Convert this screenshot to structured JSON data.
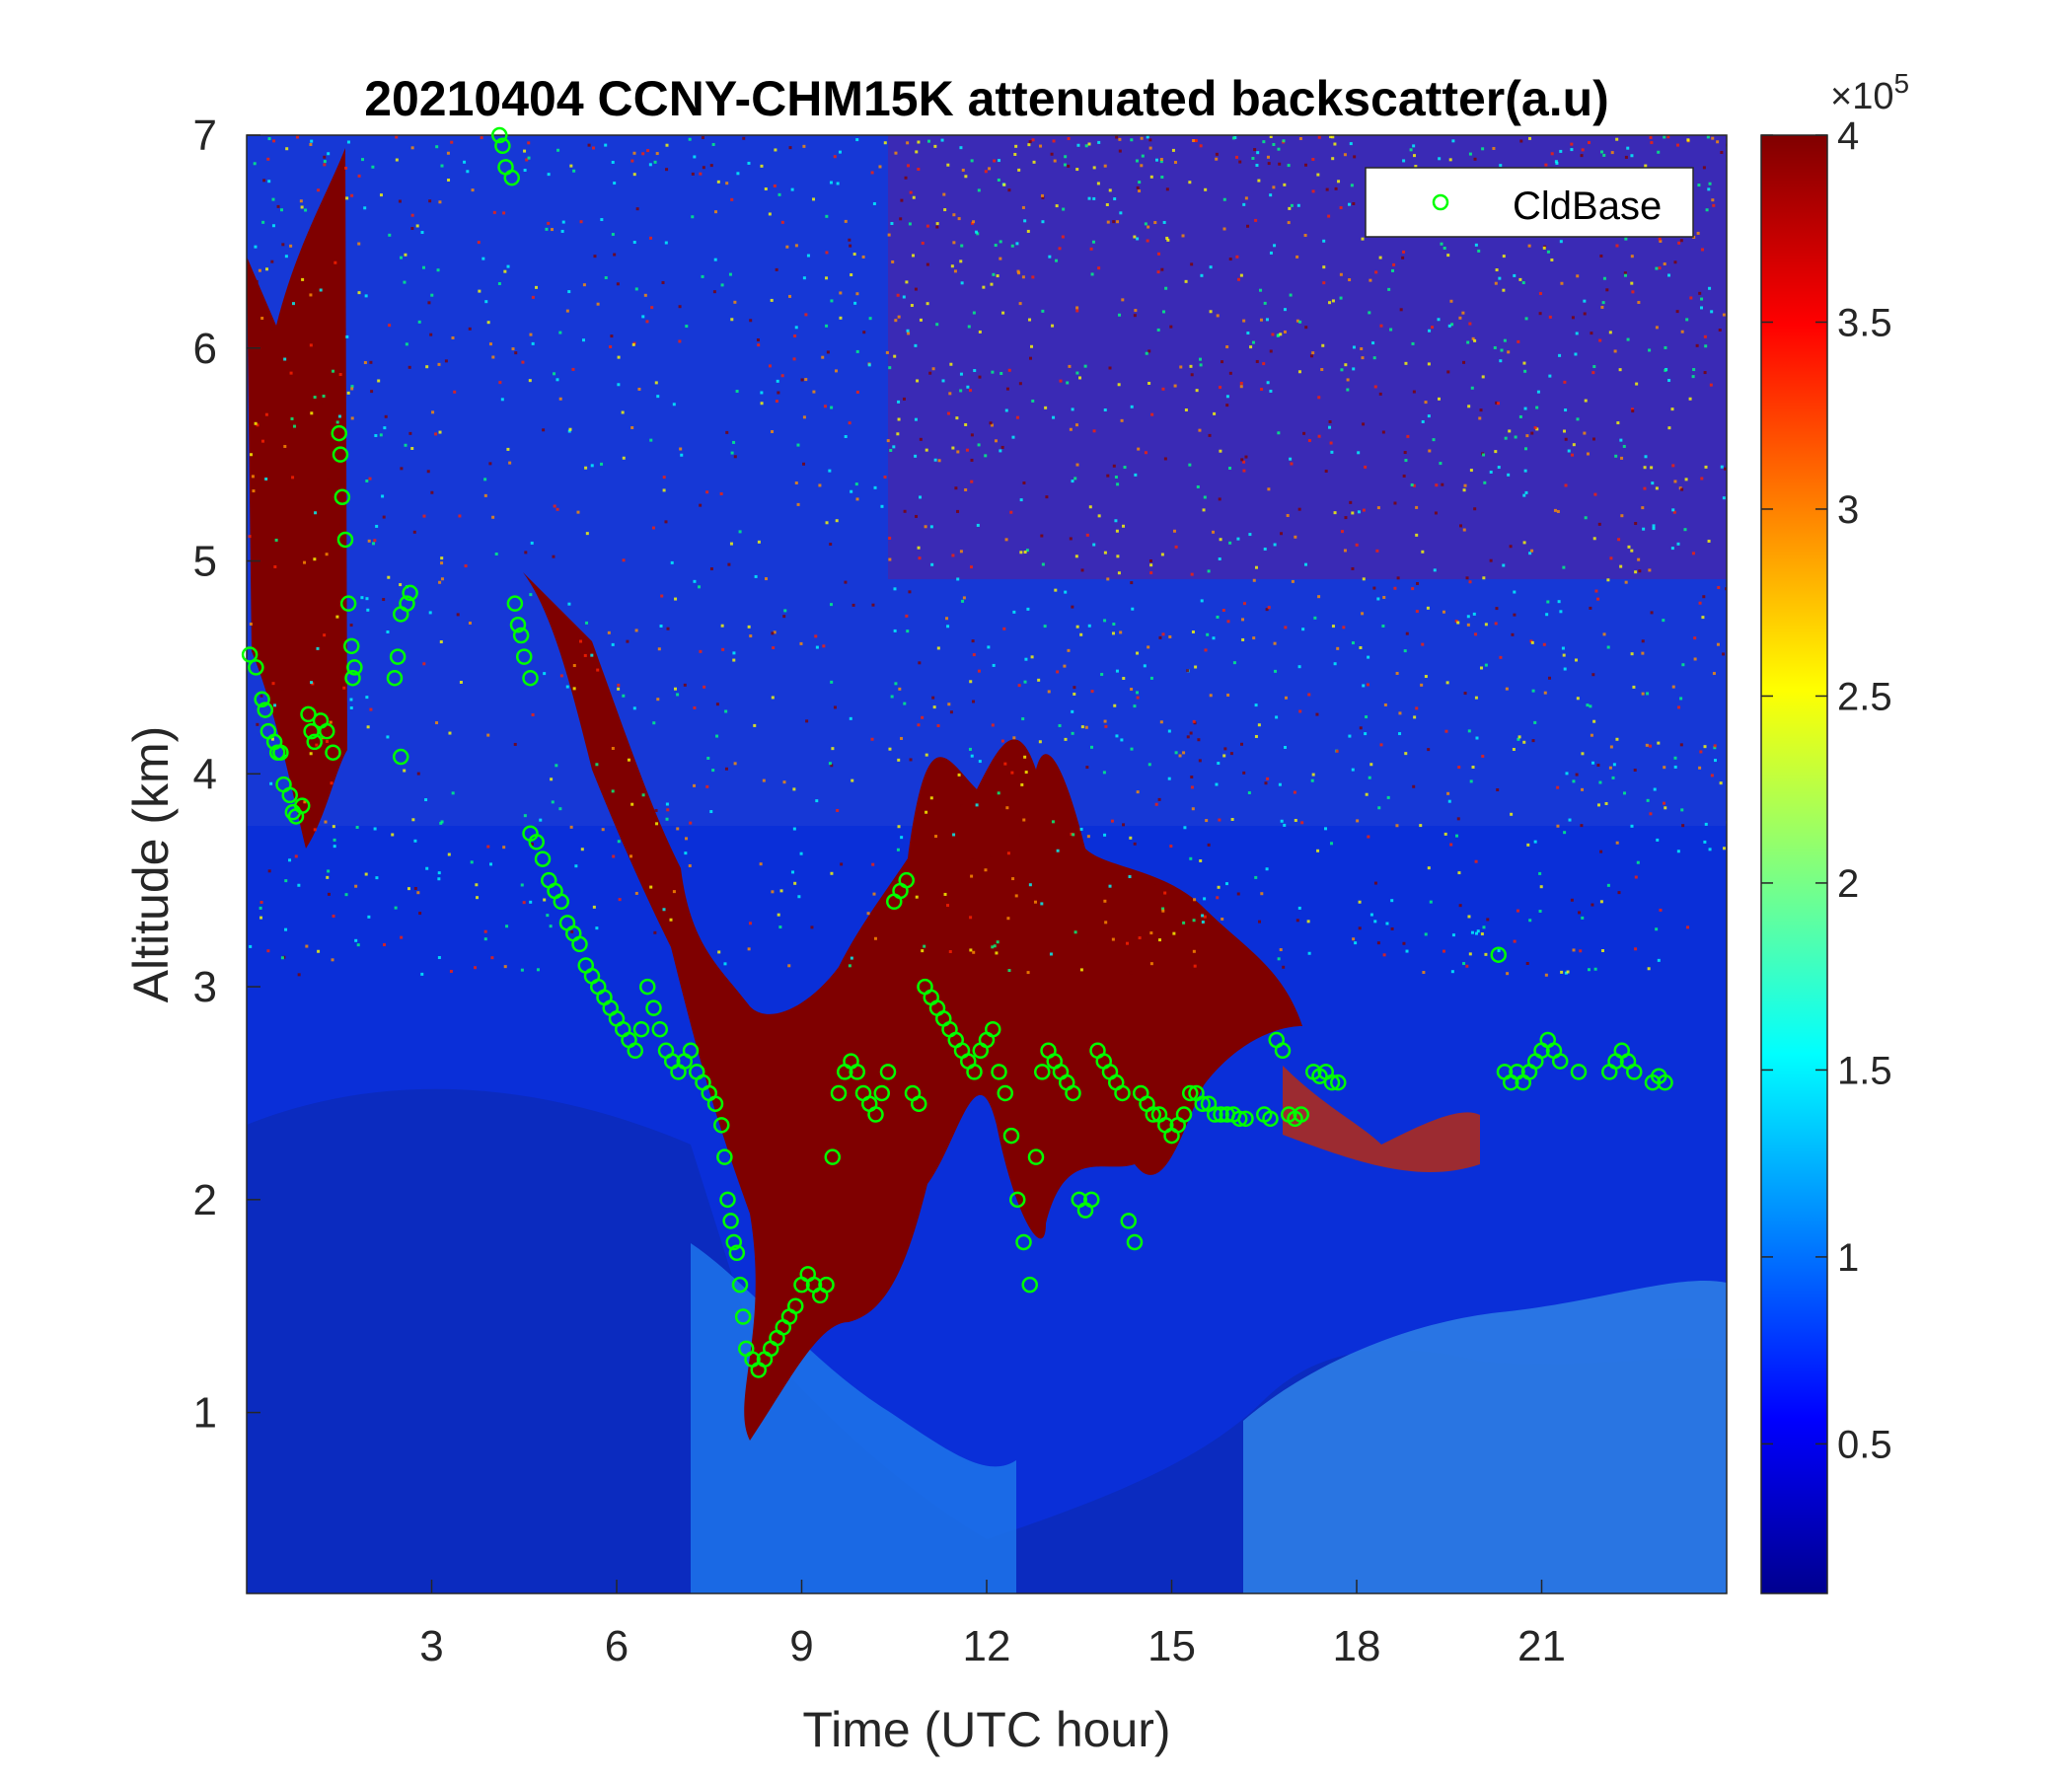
{
  "chart_data": {
    "type": "heatmap",
    "title": "20210404 CCNY-CHM15K attenuated backscatter(a.u)",
    "xlabel": "Time (UTC hour)",
    "ylabel": "Altitude (km)",
    "xlim": [
      0,
      24
    ],
    "ylim": [
      0.15,
      7
    ],
    "xticks": [
      3,
      6,
      9,
      12,
      15,
      18,
      21
    ],
    "yticks": [
      1,
      2,
      3,
      4,
      5,
      6,
      7
    ],
    "colormap": "jet",
    "colorbar": {
      "clim": [
        0.1,
        4
      ],
      "ticks": [
        0.5,
        1,
        1.5,
        2,
        2.5,
        3,
        3.5,
        4
      ],
      "tick_labels": [
        "0.5",
        "1",
        "1.5",
        "2",
        "2.5",
        "3",
        "3.5",
        "4"
      ],
      "exponent_label": "×10",
      "exponent": "5"
    },
    "legend": {
      "placement": "top-right",
      "entries": [
        {
          "label": "CldBase",
          "color": "#00ff00",
          "marker": "circle-open"
        }
      ]
    },
    "series": [
      {
        "name": "CldBase",
        "color": "#00ff00",
        "points": [
          [
            0.05,
            4.56
          ],
          [
            0.15,
            4.5
          ],
          [
            0.25,
            4.35
          ],
          [
            0.3,
            4.3
          ],
          [
            0.35,
            4.2
          ],
          [
            0.45,
            4.15
          ],
          [
            0.5,
            4.1
          ],
          [
            0.55,
            4.1
          ],
          [
            0.6,
            3.95
          ],
          [
            0.7,
            3.9
          ],
          [
            0.75,
            3.82
          ],
          [
            0.8,
            3.8
          ],
          [
            0.9,
            3.85
          ],
          [
            1.0,
            4.28
          ],
          [
            1.05,
            4.2
          ],
          [
            1.1,
            4.15
          ],
          [
            1.2,
            4.25
          ],
          [
            1.3,
            4.2
          ],
          [
            1.4,
            4.1
          ],
          [
            1.5,
            5.6
          ],
          [
            1.52,
            5.5
          ],
          [
            1.55,
            5.3
          ],
          [
            1.6,
            5.1
          ],
          [
            1.65,
            4.8
          ],
          [
            1.7,
            4.6
          ],
          [
            1.72,
            4.45
          ],
          [
            1.75,
            4.5
          ],
          [
            2.4,
            4.45
          ],
          [
            2.45,
            4.55
          ],
          [
            2.5,
            4.08
          ],
          [
            2.5,
            4.75
          ],
          [
            2.6,
            4.8
          ],
          [
            2.65,
            4.85
          ],
          [
            4.1,
            7.0
          ],
          [
            4.15,
            6.95
          ],
          [
            4.2,
            6.85
          ],
          [
            4.3,
            6.8
          ],
          [
            4.35,
            4.8
          ],
          [
            4.4,
            4.7
          ],
          [
            4.45,
            4.65
          ],
          [
            4.5,
            4.55
          ],
          [
            4.6,
            4.45
          ],
          [
            4.6,
            3.72
          ],
          [
            4.7,
            3.68
          ],
          [
            4.8,
            3.6
          ],
          [
            4.9,
            3.5
          ],
          [
            5.0,
            3.45
          ],
          [
            5.1,
            3.4
          ],
          [
            5.2,
            3.3
          ],
          [
            5.3,
            3.25
          ],
          [
            5.4,
            3.2
          ],
          [
            5.5,
            3.1
          ],
          [
            5.6,
            3.05
          ],
          [
            5.7,
            3.0
          ],
          [
            5.8,
            2.95
          ],
          [
            5.9,
            2.9
          ],
          [
            6.0,
            2.85
          ],
          [
            6.1,
            2.8
          ],
          [
            6.2,
            2.75
          ],
          [
            6.3,
            2.7
          ],
          [
            6.4,
            2.8
          ],
          [
            6.5,
            3.0
          ],
          [
            6.6,
            2.9
          ],
          [
            6.7,
            2.8
          ],
          [
            6.8,
            2.7
          ],
          [
            6.9,
            2.65
          ],
          [
            7.0,
            2.6
          ],
          [
            7.1,
            2.65
          ],
          [
            7.2,
            2.7
          ],
          [
            7.3,
            2.6
          ],
          [
            7.4,
            2.55
          ],
          [
            7.5,
            2.5
          ],
          [
            7.6,
            2.45
          ],
          [
            7.7,
            2.35
          ],
          [
            7.75,
            2.2
          ],
          [
            7.8,
            2.0
          ],
          [
            7.85,
            1.9
          ],
          [
            7.9,
            1.8
          ],
          [
            7.95,
            1.75
          ],
          [
            8.0,
            1.6
          ],
          [
            8.05,
            1.45
          ],
          [
            8.1,
            1.3
          ],
          [
            8.2,
            1.25
          ],
          [
            8.3,
            1.2
          ],
          [
            8.4,
            1.25
          ],
          [
            8.5,
            1.3
          ],
          [
            8.6,
            1.35
          ],
          [
            8.7,
            1.4
          ],
          [
            8.8,
            1.45
          ],
          [
            8.9,
            1.5
          ],
          [
            9.0,
            1.6
          ],
          [
            9.1,
            1.65
          ],
          [
            9.2,
            1.6
          ],
          [
            9.3,
            1.55
          ],
          [
            9.4,
            1.6
          ],
          [
            9.5,
            2.2
          ],
          [
            9.6,
            2.5
          ],
          [
            9.7,
            2.6
          ],
          [
            9.8,
            2.65
          ],
          [
            9.9,
            2.6
          ],
          [
            10.0,
            2.5
          ],
          [
            10.1,
            2.45
          ],
          [
            10.2,
            2.4
          ],
          [
            10.3,
            2.5
          ],
          [
            10.4,
            2.6
          ],
          [
            10.5,
            3.4
          ],
          [
            10.6,
            3.45
          ],
          [
            10.7,
            3.5
          ],
          [
            10.8,
            2.5
          ],
          [
            10.9,
            2.45
          ],
          [
            11.0,
            3.0
          ],
          [
            11.1,
            2.95
          ],
          [
            11.2,
            2.9
          ],
          [
            11.3,
            2.85
          ],
          [
            11.4,
            2.8
          ],
          [
            11.5,
            2.75
          ],
          [
            11.6,
            2.7
          ],
          [
            11.7,
            2.65
          ],
          [
            11.8,
            2.6
          ],
          [
            11.9,
            2.7
          ],
          [
            12.0,
            2.75
          ],
          [
            12.1,
            2.8
          ],
          [
            12.2,
            2.6
          ],
          [
            12.3,
            2.5
          ],
          [
            12.4,
            2.3
          ],
          [
            12.5,
            2.0
          ],
          [
            12.6,
            1.8
          ],
          [
            12.7,
            1.6
          ],
          [
            12.8,
            2.2
          ],
          [
            12.9,
            2.6
          ],
          [
            13.0,
            2.7
          ],
          [
            13.1,
            2.65
          ],
          [
            13.2,
            2.6
          ],
          [
            13.3,
            2.55
          ],
          [
            13.4,
            2.5
          ],
          [
            13.5,
            2.0
          ],
          [
            13.6,
            1.95
          ],
          [
            13.7,
            2.0
          ],
          [
            13.8,
            2.7
          ],
          [
            13.9,
            2.65
          ],
          [
            14.0,
            2.6
          ],
          [
            14.1,
            2.55
          ],
          [
            14.2,
            2.5
          ],
          [
            14.3,
            1.9
          ],
          [
            14.4,
            1.8
          ],
          [
            14.5,
            2.5
          ],
          [
            14.6,
            2.45
          ],
          [
            14.7,
            2.4
          ],
          [
            14.8,
            2.4
          ],
          [
            14.9,
            2.35
          ],
          [
            15.0,
            2.3
          ],
          [
            15.1,
            2.35
          ],
          [
            15.2,
            2.4
          ],
          [
            15.3,
            2.5
          ],
          [
            15.4,
            2.5
          ],
          [
            15.5,
            2.45
          ],
          [
            15.6,
            2.45
          ],
          [
            15.7,
            2.4
          ],
          [
            15.8,
            2.4
          ],
          [
            15.9,
            2.4
          ],
          [
            16.0,
            2.4
          ],
          [
            16.1,
            2.38
          ],
          [
            16.2,
            2.38
          ],
          [
            16.5,
            2.4
          ],
          [
            16.6,
            2.38
          ],
          [
            16.7,
            2.75
          ],
          [
            16.8,
            2.7
          ],
          [
            16.9,
            2.4
          ],
          [
            17.0,
            2.38
          ],
          [
            17.1,
            2.4
          ],
          [
            17.3,
            2.6
          ],
          [
            17.4,
            2.58
          ],
          [
            17.5,
            2.6
          ],
          [
            17.6,
            2.55
          ],
          [
            17.7,
            2.55
          ],
          [
            20.3,
            3.15
          ],
          [
            20.4,
            2.6
          ],
          [
            20.5,
            2.55
          ],
          [
            20.6,
            2.6
          ],
          [
            20.7,
            2.55
          ],
          [
            20.8,
            2.6
          ],
          [
            20.9,
            2.65
          ],
          [
            21.0,
            2.7
          ],
          [
            21.1,
            2.75
          ],
          [
            21.2,
            2.7
          ],
          [
            21.3,
            2.65
          ],
          [
            21.6,
            2.6
          ],
          [
            22.1,
            2.6
          ],
          [
            22.2,
            2.65
          ],
          [
            22.3,
            2.7
          ],
          [
            22.4,
            2.65
          ],
          [
            22.5,
            2.6
          ],
          [
            22.8,
            2.55
          ],
          [
            22.9,
            2.58
          ],
          [
            23.0,
            2.55
          ]
        ]
      }
    ]
  }
}
